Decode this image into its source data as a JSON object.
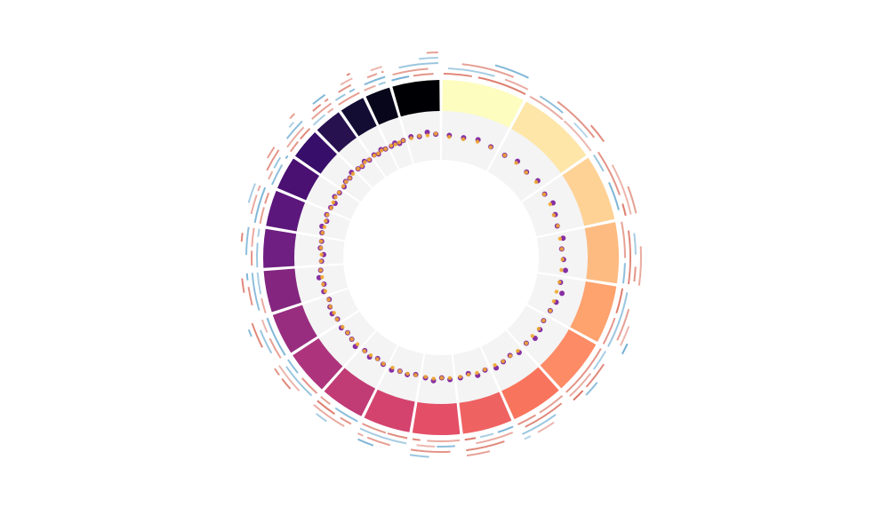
{
  "chart_data": {
    "type": "circos",
    "segments": {
      "lengths": [
        30,
        29,
        24,
        22,
        21,
        20,
        19,
        18,
        17,
        17,
        16,
        16,
        15,
        15,
        14,
        13,
        12,
        11,
        10,
        9,
        9,
        17
      ],
      "colors": [
        "#fcfdbf",
        "#fde6a8",
        "#fed195",
        "#febb81",
        "#fea26e",
        "#fd8b66",
        "#f9745c",
        "#ef6262",
        "#e44e66",
        "#d3436e",
        "#c13b75",
        "#ad347c",
        "#982d80",
        "#84267f",
        "#6e1f81",
        "#5c177d",
        "#4a1072",
        "#370e6a",
        "#27114f",
        "#130d34",
        "#08061a",
        "#000004"
      ]
    },
    "scatter": {
      "ylim": [
        0,
        1
      ],
      "series": [
        {
          "color": "#7b1a9a",
          "values": [
            [
              0.48,
              0.47,
              0.5,
              0.46
            ],
            [
              0.44,
              0.49,
              0.45,
              0.5
            ],
            [
              0.46,
              0.52,
              0.47,
              0.44
            ],
            [
              0.5,
              0.45,
              0.48,
              0.53
            ],
            [
              0.47,
              0.55,
              0.5,
              0.46
            ],
            [
              0.44,
              0.48,
              0.51,
              0.45
            ],
            [
              0.49,
              0.43,
              0.46,
              0.5
            ],
            [
              0.45,
              0.5,
              0.42,
              0.47
            ],
            [
              0.48,
              0.44,
              0.5,
              0.46
            ],
            [
              0.43,
              0.47,
              0.45,
              0.49
            ],
            [
              0.46,
              0.42,
              0.48,
              0.44
            ],
            [
              0.5,
              0.45,
              0.43,
              0.47
            ],
            [
              0.44,
              0.48,
              0.46,
              0.42
            ],
            [
              0.47,
              0.43,
              0.5,
              0.45
            ],
            [
              0.42,
              0.38,
              0.45,
              0.44
            ],
            [
              0.46,
              0.49,
              0.43,
              0.47
            ],
            [
              0.45,
              0.41,
              0.48,
              0.44
            ],
            [
              0.43,
              0.47,
              0.45,
              0.5
            ],
            [
              0.46,
              0.44,
              0.49,
              0.45
            ],
            [
              0.48,
              0.45,
              0.5,
              0.47
            ],
            [
              0.47,
              0.5,
              0.46,
              0.49
            ],
            [
              0.52,
              0.49,
              0.55,
              0.5
            ]
          ]
        },
        {
          "color": "#f0a830",
          "values": [
            [
              0.45,
              0.44,
              0.46,
              0.45
            ],
            [
              0.44,
              0.45,
              0.44,
              0.46
            ],
            [
              0.45,
              0.46,
              0.44,
              0.45
            ],
            [
              0.44,
              0.45,
              0.46,
              0.45
            ],
            [
              0.45,
              0.44,
              0.45,
              0.46
            ],
            [
              0.44,
              0.45,
              0.44,
              0.45
            ],
            [
              0.45,
              0.44,
              0.45,
              0.44
            ],
            [
              0.44,
              0.45,
              0.44,
              0.45
            ],
            [
              0.45,
              0.44,
              0.46,
              0.44
            ],
            [
              0.44,
              0.45,
              0.45,
              0.44
            ],
            [
              0.45,
              0.43,
              0.44,
              0.45
            ],
            [
              0.44,
              0.45,
              0.43,
              0.44
            ],
            [
              0.45,
              0.44,
              0.45,
              0.43
            ],
            [
              0.44,
              0.45,
              0.44,
              0.45
            ],
            [
              0.43,
              0.42,
              0.44,
              0.45
            ],
            [
              0.45,
              0.44,
              0.45,
              0.46
            ],
            [
              0.44,
              0.45,
              0.46,
              0.45
            ],
            [
              0.45,
              0.46,
              0.45,
              0.46
            ],
            [
              0.46,
              0.45,
              0.47,
              0.46
            ],
            [
              0.47,
              0.46,
              0.48,
              0.47
            ],
            [
              0.48,
              0.47,
              0.48,
              0.49
            ],
            [
              0.49,
              0.5,
              0.49,
              0.51
            ]
          ]
        }
      ]
    },
    "arcs": {
      "xlim": [
        0,
        100
      ],
      "pos_color": "#d6604d",
      "neg_color": "#4393c3",
      "values": [
        [
          [
            0,
            35,
            0.7
          ],
          [
            5,
            60,
            -0.3
          ],
          [
            20,
            80,
            0.5
          ],
          [
            40,
            100,
            0.8
          ],
          [
            55,
            95,
            -0.6
          ],
          [
            70,
            100,
            0.4
          ]
        ],
        [
          [
            0,
            50,
            0.4
          ],
          [
            10,
            45,
            -0.5
          ],
          [
            30,
            90,
            0.6
          ],
          [
            50,
            100,
            0.3
          ],
          [
            60,
            85,
            -0.2
          ],
          [
            75,
            100,
            0.7
          ]
        ],
        [
          [
            0,
            30,
            -0.4
          ],
          [
            0,
            70,
            0.6
          ],
          [
            25,
            100,
            0.3
          ],
          [
            45,
            90,
            -0.6
          ],
          [
            60,
            100,
            0.5
          ],
          [
            80,
            100,
            0.8
          ]
        ],
        [
          [
            0,
            60,
            0.5
          ],
          [
            15,
            100,
            0.7
          ],
          [
            20,
            55,
            -0.3
          ],
          [
            40,
            100,
            0.4
          ],
          [
            65,
            100,
            -0.5
          ],
          [
            70,
            95,
            0.6
          ]
        ],
        [
          [
            0,
            45,
            0.8
          ],
          [
            5,
            100,
            -0.4
          ],
          [
            30,
            85,
            0.5
          ],
          [
            50,
            100,
            0.6
          ],
          [
            55,
            90,
            0.3
          ],
          [
            80,
            100,
            -0.7
          ]
        ],
        [
          [
            0,
            100,
            0.6
          ],
          [
            0,
            40,
            -0.3
          ],
          [
            20,
            70,
            0.7
          ],
          [
            45,
            100,
            0.4
          ],
          [
            50,
            80,
            -0.5
          ],
          [
            75,
            100,
            0.9
          ]
        ],
        [
          [
            0,
            55,
            0.5
          ],
          [
            10,
            90,
            0.7
          ],
          [
            30,
            100,
            -0.4
          ],
          [
            40,
            75,
            0.3
          ],
          [
            60,
            100,
            0.6
          ],
          [
            85,
            100,
            -0.2
          ]
        ],
        [
          [
            0,
            35,
            -0.6
          ],
          [
            5,
            80,
            0.4
          ],
          [
            25,
            100,
            0.7
          ],
          [
            40,
            70,
            -0.3
          ],
          [
            55,
            100,
            0.5
          ],
          [
            75,
            100,
            0.8
          ]
        ],
        [
          [
            0,
            70,
            0.4
          ],
          [
            10,
            50,
            -0.5
          ],
          [
            20,
            100,
            0.6
          ],
          [
            50,
            90,
            0.3
          ],
          [
            60,
            100,
            -0.4
          ],
          [
            80,
            100,
            0.7
          ]
        ],
        [
          [
            0,
            45,
            0.7
          ],
          [
            0,
            100,
            -0.3
          ],
          [
            30,
            80,
            0.5
          ],
          [
            45,
            100,
            0.6
          ],
          [
            60,
            95,
            -0.6
          ],
          [
            85,
            100,
            0.4
          ]
        ],
        [
          [
            0,
            60,
            -0.5
          ],
          [
            10,
            40,
            0.6
          ],
          [
            20,
            100,
            0.4
          ],
          [
            50,
            100,
            0.8
          ],
          [
            55,
            85,
            -0.3
          ],
          [
            70,
            100,
            0.5
          ]
        ],
        [
          [
            0,
            50,
            0.6
          ],
          [
            5,
            90,
            -0.4
          ],
          [
            30,
            100,
            0.3
          ],
          [
            45,
            75,
            0.7
          ],
          [
            60,
            100,
            -0.5
          ],
          [
            80,
            100,
            0.6
          ]
        ],
        [
          [
            0,
            100,
            -0.6
          ],
          [
            0,
            55,
            0.5
          ],
          [
            20,
            80,
            -0.4
          ],
          [
            40,
            100,
            0.7
          ],
          [
            65,
            100,
            0.3
          ],
          [
            70,
            90,
            -0.5
          ]
        ],
        [
          [
            0,
            40,
            0.4
          ],
          [
            10,
            100,
            -0.5
          ],
          [
            25,
            70,
            0.6
          ],
          [
            45,
            100,
            -0.3
          ],
          [
            55,
            90,
            0.7
          ],
          [
            80,
            100,
            -0.6
          ]
        ],
        [
          [
            0,
            65,
            -0.4
          ],
          [
            5,
            45,
            0.6
          ],
          [
            30,
            100,
            -0.5
          ],
          [
            50,
            100,
            0.4
          ],
          [
            60,
            85,
            0.7
          ],
          [
            75,
            100,
            -0.3
          ]
        ],
        [
          [
            0,
            50,
            0.5
          ],
          [
            0,
            100,
            -0.6
          ],
          [
            20,
            75,
            0.4
          ],
          [
            45,
            100,
            -0.3
          ],
          [
            55,
            90,
            0.6
          ],
          [
            80,
            100,
            0.4
          ]
        ],
        [
          [
            0,
            70,
            -0.5
          ],
          [
            10,
            40,
            0.4
          ],
          [
            30,
            100,
            0.6
          ],
          [
            45,
            85,
            -0.4
          ],
          [
            60,
            100,
            0.5
          ],
          [
            85,
            100,
            -0.6
          ]
        ],
        [
          [
            0,
            45,
            0.6
          ],
          [
            5,
            90,
            0.4
          ],
          [
            25,
            100,
            -0.5
          ],
          [
            50,
            100,
            0.7
          ],
          [
            55,
            80,
            -0.3
          ],
          [
            75,
            100,
            0.5
          ]
        ],
        [
          [
            0,
            60,
            -0.3
          ],
          [
            10,
            100,
            0.5
          ],
          [
            30,
            70,
            0.7
          ],
          [
            45,
            100,
            -0.6
          ],
          [
            65,
            95,
            0.4
          ],
          [
            80,
            100,
            0.6
          ]
        ],
        [
          [
            0,
            100,
            0.5
          ],
          [
            0,
            50,
            -0.4
          ],
          [
            25,
            85,
            0.6
          ],
          [
            45,
            100,
            0.3
          ],
          [
            60,
            90,
            -0.5
          ],
          [
            80,
            100,
            0.7
          ]
        ],
        [
          [
            0,
            55,
            0.4
          ],
          [
            10,
            100,
            -0.6
          ],
          [
            30,
            75,
            0.5
          ],
          [
            50,
            100,
            0.3
          ],
          [
            60,
            95,
            -0.4
          ],
          [
            85,
            100,
            0.6
          ]
        ],
        [
          [
            0,
            40,
            -0.7
          ],
          [
            5,
            80,
            0.5
          ],
          [
            20,
            100,
            -0.4
          ],
          [
            45,
            90,
            0.6
          ],
          [
            60,
            100,
            -0.3
          ],
          [
            75,
            100,
            0.5
          ]
        ]
      ]
    }
  }
}
